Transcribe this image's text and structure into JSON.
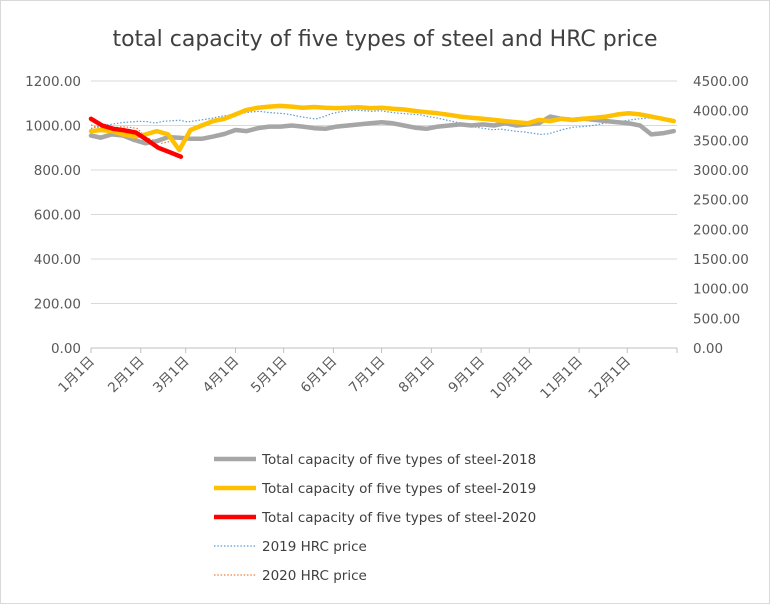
{
  "chart_data": {
    "type": "line",
    "title": "total capacity of five types of steel and HRC price",
    "x_categories": [
      "1月1日",
      "2月1日",
      "3月1日",
      "4月1日",
      "5月1日",
      "6月1日",
      "7月1日",
      "8月1日",
      "9月1日",
      "10月1日",
      "11月1日",
      "12月1日"
    ],
    "y_left": {
      "min": 0,
      "max": 1200,
      "ticks": [
        "0.00",
        "200.00",
        "400.00",
        "600.00",
        "800.00",
        "1000.00",
        "1200.00"
      ]
    },
    "y_right": {
      "min": 0,
      "max": 4500,
      "ticks": [
        "0.00",
        "500.00",
        "1000.00",
        "1500.00",
        "2000.00",
        "2500.00",
        "3000.00",
        "3500.00",
        "4000.00",
        "4500.00"
      ]
    },
    "grid": true,
    "legend_position": "bottom",
    "series": [
      {
        "name": "Total capacity of five types of steel-2018",
        "axis": "left",
        "color": "#a6a6a6",
        "style": "solid-thick",
        "x_day": [
          1,
          7,
          14,
          21,
          28,
          35,
          42,
          49,
          56,
          63,
          70,
          77,
          84,
          91,
          98,
          105,
          112,
          119,
          126,
          133,
          140,
          147,
          154,
          161,
          168,
          175,
          182,
          189,
          196,
          203,
          210,
          217,
          224,
          231,
          238,
          245,
          252,
          259,
          266,
          273,
          280,
          287,
          294,
          301,
          308,
          315,
          322,
          329,
          336,
          343,
          350,
          357,
          364
        ],
        "values": [
          955,
          945,
          960,
          955,
          935,
          920,
          930,
          948,
          945,
          940,
          940,
          950,
          962,
          980,
          975,
          988,
          995,
          995,
          1000,
          995,
          988,
          985,
          995,
          1000,
          1005,
          1010,
          1015,
          1010,
          1000,
          990,
          985,
          995,
          1000,
          1005,
          1000,
          1005,
          1000,
          1010,
          1000,
          1005,
          1010,
          1040,
          1030,
          1025,
          1030,
          1025,
          1020,
          1015,
          1010,
          1000,
          960,
          965,
          975
        ]
      },
      {
        "name": "Total capacity of five types of steel-2019",
        "axis": "left",
        "color": "#ffc000",
        "style": "solid-thick",
        "x_day": [
          1,
          7,
          14,
          21,
          28,
          35,
          42,
          49,
          56,
          63,
          70,
          77,
          84,
          91,
          98,
          105,
          112,
          119,
          126,
          133,
          140,
          147,
          154,
          161,
          168,
          175,
          182,
          189,
          196,
          203,
          210,
          217,
          224,
          231,
          238,
          245,
          252,
          259,
          266,
          273,
          280,
          287,
          294,
          301,
          308,
          315,
          322,
          329,
          336,
          343,
          350,
          357,
          364
        ],
        "values": [
          975,
          980,
          975,
          960,
          950,
          960,
          975,
          960,
          890,
          980,
          1000,
          1020,
          1030,
          1050,
          1070,
          1080,
          1085,
          1088,
          1085,
          1080,
          1083,
          1080,
          1078,
          1080,
          1082,
          1078,
          1080,
          1075,
          1072,
          1065,
          1060,
          1055,
          1048,
          1040,
          1035,
          1030,
          1025,
          1020,
          1015,
          1010,
          1025,
          1020,
          1030,
          1025,
          1030,
          1035,
          1040,
          1050,
          1055,
          1050,
          1040,
          1030,
          1020
        ]
      },
      {
        "name": "Total capacity of five types of steel-2020",
        "axis": "left",
        "color": "#ff0000",
        "style": "solid-thick",
        "x_day": [
          1,
          8,
          15,
          22,
          29,
          36,
          43,
          50,
          57
        ],
        "values": [
          1030,
          1000,
          985,
          978,
          968,
          935,
          900,
          880,
          860
        ]
      },
      {
        "name": "2019 HRC price",
        "axis": "right",
        "color": "#5b9bd5",
        "style": "dotted",
        "x_day": [
          1,
          6,
          11,
          16,
          21,
          26,
          31,
          36,
          41,
          46,
          51,
          56,
          61,
          66,
          71,
          76,
          81,
          86,
          91,
          96,
          101,
          106,
          111,
          116,
          121,
          126,
          131,
          136,
          141,
          146,
          151,
          156,
          161,
          166,
          171,
          176,
          181,
          186,
          191,
          196,
          201,
          206,
          211,
          216,
          221,
          226,
          231,
          236,
          241,
          246,
          251,
          256,
          261,
          266,
          271,
          276,
          281,
          286,
          291,
          296,
          301,
          306,
          311,
          316,
          321,
          326,
          331,
          336,
          341,
          346,
          351,
          356,
          361,
          364
        ],
        "values": [
          3700,
          3740,
          3760,
          3780,
          3800,
          3810,
          3820,
          3815,
          3790,
          3820,
          3830,
          3840,
          3810,
          3830,
          3850,
          3870,
          3900,
          3920,
          3940,
          3960,
          3980,
          3990,
          3970,
          3960,
          3950,
          3930,
          3900,
          3880,
          3860,
          3900,
          3950,
          3980,
          4000,
          4010,
          4000,
          3990,
          4000,
          3980,
          3960,
          3950,
          3940,
          3930,
          3900,
          3880,
          3850,
          3820,
          3790,
          3760,
          3720,
          3700,
          3680,
          3690,
          3670,
          3650,
          3640,
          3620,
          3600,
          3610,
          3650,
          3690,
          3720,
          3730,
          3740,
          3760,
          3790,
          3800,
          3820,
          3840,
          3860,
          3870,
          3880,
          3860,
          3840,
          3820
        ]
      },
      {
        "name": "2020 HRC price",
        "axis": "right",
        "color": "#ed7d31",
        "style": "dotted",
        "x_day": [
          1,
          5,
          10,
          15,
          20,
          25,
          30,
          35,
          40,
          45,
          50
        ],
        "values": [
          3760,
          3720,
          3700,
          3710,
          3730,
          3720,
          3700,
          3550,
          3500,
          3450,
          3480
        ]
      }
    ]
  }
}
